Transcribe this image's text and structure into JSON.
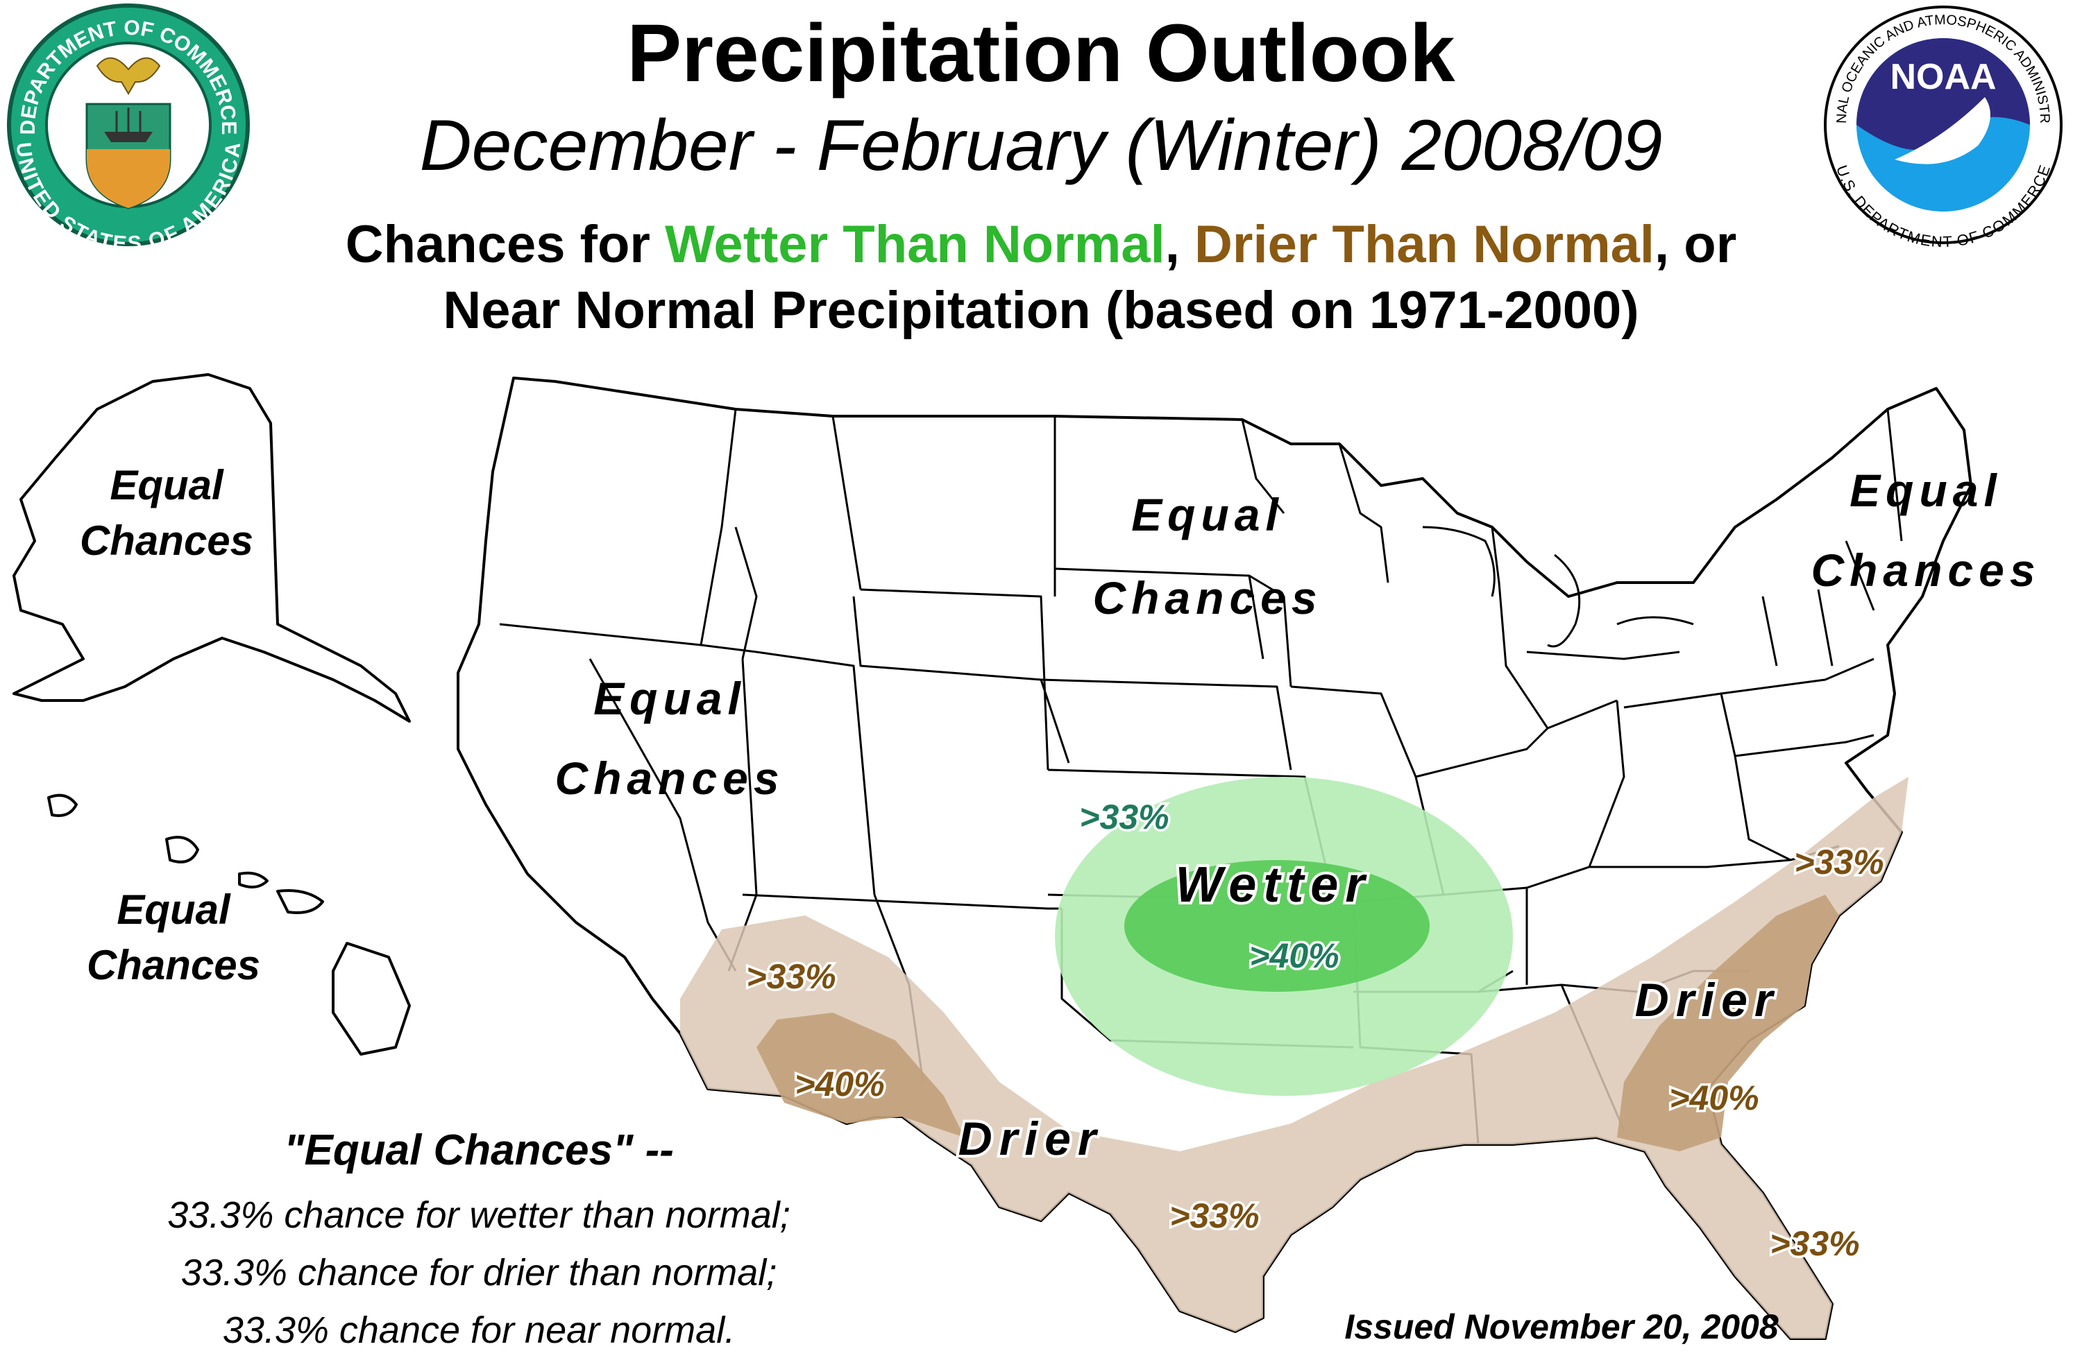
{
  "header": {
    "title": "Precipitation Outlook",
    "subtitle": "December - February (Winter) 2008/09",
    "chances_prefix": "Chances for ",
    "wetter": "Wetter Than Normal",
    "comma": ", ",
    "drier": "Drier Than Normal",
    "chances_suffix": ", or",
    "line2": "Near Normal Precipitation (based on 1971-2000)"
  },
  "logos": {
    "commerce": {
      "top_text": "DEPARTMENT OF COMMERCE",
      "bottom_text": "UNITED STATES OF AMERICA"
    },
    "noaa": {
      "center_text": "NOAA",
      "top_text": "NATIONAL OCEANIC AND ATMOSPHERIC ADMINISTRATION",
      "bottom_text": "U.S. DEPARTMENT OF COMMERCE"
    }
  },
  "regions": {
    "alaska": [
      "Equal",
      "Chances"
    ],
    "hawaii": [
      "Equal",
      "Chances"
    ],
    "west": [
      "Equal",
      "Chances"
    ],
    "plains": [
      "Equal",
      "Chances"
    ],
    "northeast": [
      "Equal",
      "Chances"
    ]
  },
  "categories": {
    "wetter": "Wetter",
    "drier_sw": "Drier",
    "drier_se": "Drier"
  },
  "percent_labels": {
    "wet_33": ">33%",
    "wet_40": ">40%",
    "az_33": ">33%",
    "az_40": ">40%",
    "tx_33": ">33%",
    "nc_33": ">33%",
    "ga_40": ">40%",
    "fl_33": ">33%"
  },
  "legend": {
    "heading": "\"Equal Chances\" --",
    "line1": "33.3% chance for wetter than normal;",
    "line2": "33.3% chance for drier than normal;",
    "line3": "33.3% chance for near normal."
  },
  "issued": "Issued November 20, 2008",
  "colors": {
    "dry_light": "#dcc8b4",
    "dry_dark": "#c2a07a",
    "wet_light": "#b4ecb4",
    "wet_dark": "#5ccb5c",
    "wet_text": "#2db82d",
    "dry_text": "#8a5a12"
  }
}
